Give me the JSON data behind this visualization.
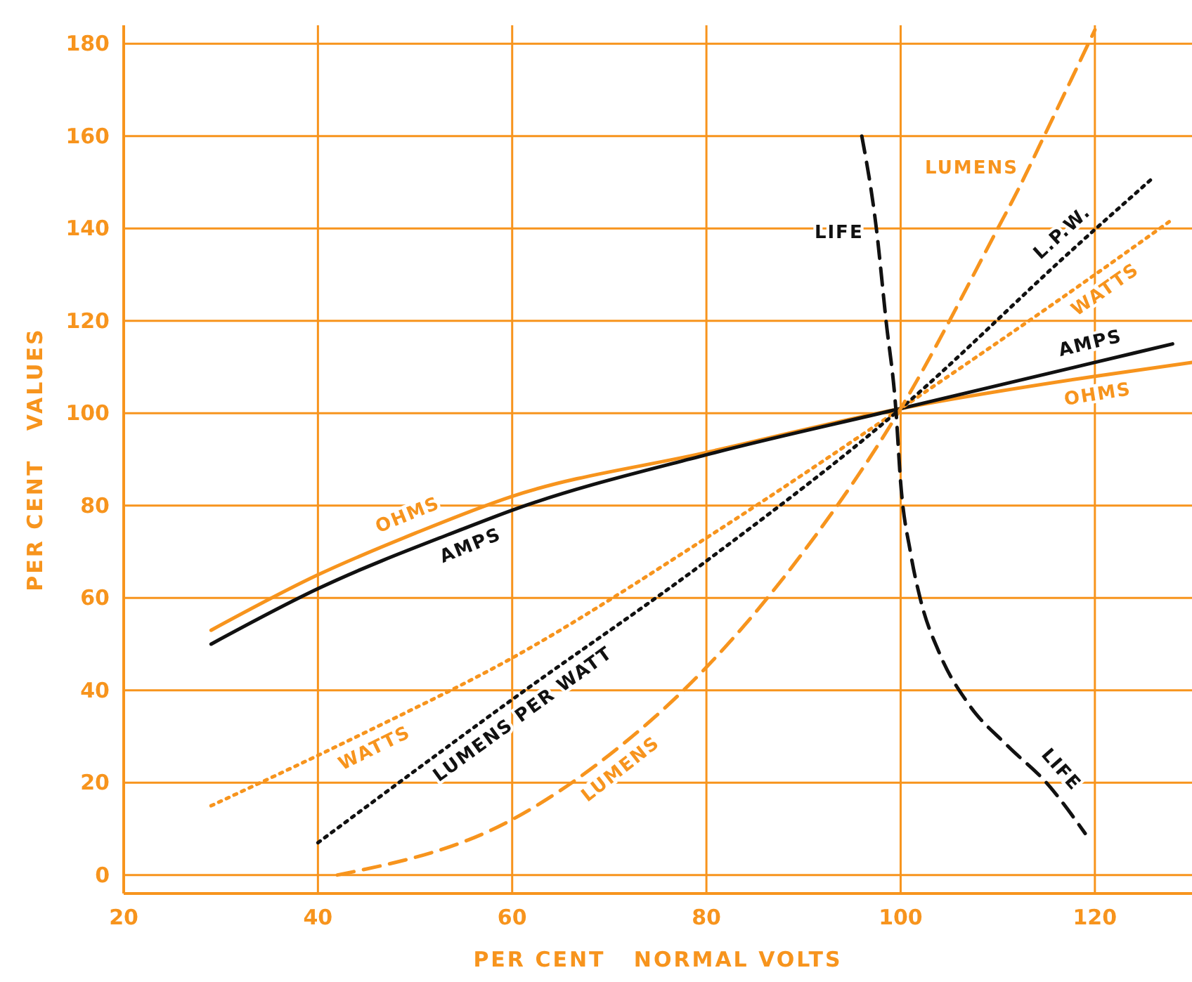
{
  "chart_data": {
    "type": "line",
    "xlabel": "PER CENT   NORMAL VOLTS",
    "ylabel": "PER CENT   VALUES",
    "xlim": [
      20,
      130
    ],
    "ylim": [
      -4,
      184
    ],
    "xticks": [
      20,
      40,
      60,
      80,
      100,
      120
    ],
    "yticks": [
      0,
      20,
      40,
      60,
      80,
      100,
      120,
      140,
      160,
      180
    ],
    "grid": true,
    "marker": "none",
    "series": [
      {
        "color": "#f7941d",
        "line_style": "solid",
        "x": [
          29,
          40,
          50,
          60,
          80,
          100,
          120,
          130
        ],
        "values": [
          53,
          65,
          74,
          82,
          91.5,
          101,
          108,
          111
        ]
      },
      {
        "color": "#111111",
        "line_style": "solid",
        "x": [
          29,
          40,
          55,
          60,
          80,
          100,
          120,
          128
        ],
        "values": [
          50,
          62,
          75,
          79,
          91,
          101,
          111,
          115
        ]
      },
      {
        "color": "#f7941d",
        "line_style": "dotted",
        "x": [
          29,
          45,
          60,
          80,
          100,
          120,
          128
        ],
        "values": [
          15,
          31,
          47,
          73,
          101,
          130,
          142
        ]
      },
      {
        "color": "#111111",
        "line_style": "dotted",
        "x": [
          40,
          60,
          80,
          100,
          118,
          126
        ],
        "values": [
          7,
          38,
          68,
          101,
          136,
          151
        ]
      },
      {
        "color": "#f7941d",
        "line_style": "dashed",
        "x": [
          42,
          60,
          70,
          80,
          90,
          100,
          110,
          112,
          115,
          120
        ],
        "values": [
          0,
          12,
          26,
          45,
          70,
          101,
          140,
          148,
          161,
          183
        ]
      },
      {
        "color": "#111111",
        "line_style": "dashed",
        "x": [
          96,
          97.5,
          98.5,
          99.5,
          100,
          101,
          102,
          104,
          107,
          111,
          115,
          119
        ],
        "values": [
          160,
          140,
          120,
          101,
          85,
          70,
          60,
          48,
          37,
          28,
          20,
          9
        ]
      }
    ],
    "annotations": [
      {
        "text": "OHMS",
        "x": 50,
        "y": 74
      },
      {
        "text": "AMPS",
        "x": 55,
        "y": 75
      },
      {
        "text": "OHMS",
        "x": 120,
        "y": 108
      },
      {
        "text": "AMPS",
        "x": 120,
        "y": 111
      },
      {
        "text": "WATTS",
        "x": 45,
        "y": 31
      },
      {
        "text": "WATTS",
        "x": 120,
        "y": 130
      },
      {
        "text": "LUMENS PER WATT",
        "x": 60,
        "y": 38
      },
      {
        "text": "L.P.W.",
        "x": 118,
        "y": 136
      },
      {
        "text": "LUMENS",
        "x": 70,
        "y": 26
      },
      {
        "text": "LUMENS",
        "x": 112,
        "y": 148
      },
      {
        "text": "LIFE",
        "x": 97.5,
        "y": 140
      },
      {
        "text": "LIFE",
        "x": 115,
        "y": 20
      }
    ]
  }
}
